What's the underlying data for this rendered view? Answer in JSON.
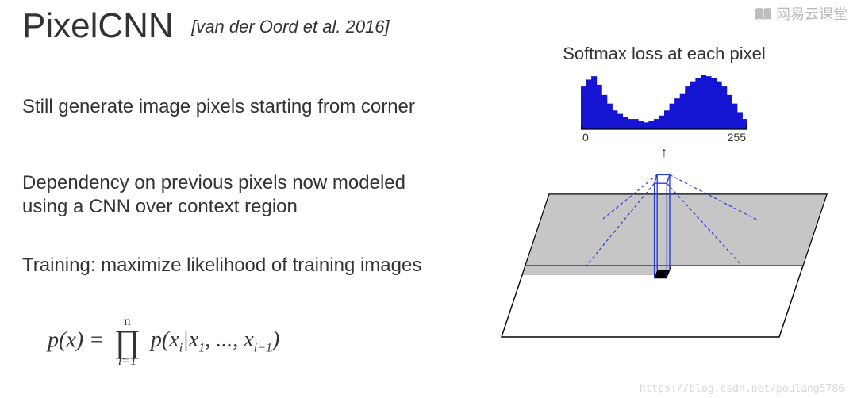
{
  "title": "PixelCNN",
  "citation": "[van der Oord et al. 2016]",
  "bullets": {
    "b1": "Still generate image pixels starting from corner",
    "b2": "Dependency on previous pixels now modeled using a CNN over context region",
    "b3": "Training: maximize likelihood of training images"
  },
  "formula": {
    "lhs": "p(x) = ",
    "prod_top": "n",
    "prod_bot": "i=1",
    "rhs_head": "p(x",
    "rhs_i": "i",
    "rhs_mid": "|x",
    "rhs_1": "1",
    "rhs_dots": ", ..., x",
    "rhs_im1": "i−1",
    "rhs_tail": ")"
  },
  "diagram": {
    "title": "Softmax loss at each pixel",
    "hist": {
      "type": "histogram",
      "xlim": [
        0,
        255
      ],
      "bins": 32,
      "values": [
        50,
        58,
        62,
        52,
        40,
        30,
        22,
        18,
        14,
        12,
        12,
        10,
        8,
        10,
        12,
        16,
        22,
        30,
        36,
        42,
        50,
        56,
        60,
        64,
        62,
        60,
        56,
        50,
        40,
        30,
        20,
        12
      ],
      "bar_color": "#1414d2",
      "axis_color": "#000000",
      "background_color": "#ffffff",
      "axis_label_min": "0",
      "axis_label_max": "255"
    },
    "plane": {
      "stroke": "#000000",
      "grid_fill": "#c6c6c6",
      "pixel_fill": "#000000",
      "box_stroke": "#2a3cd6",
      "line_dash": "4 3"
    }
  },
  "watermarks": {
    "top": "网易云课堂",
    "bottom": "https://blog.csdn.net/poulang5786"
  },
  "colors": {
    "text": "#333333",
    "bg": "#ffffff"
  }
}
